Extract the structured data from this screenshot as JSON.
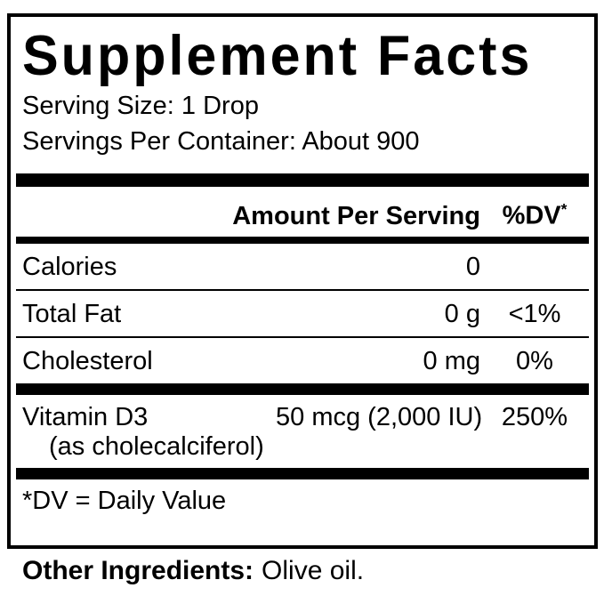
{
  "panel": {
    "title": "Supplement Facts",
    "serving_size": "Serving Size: 1 Drop",
    "servings_per_container": "Servings Per Container: About 900",
    "header": {
      "amount": "Amount Per Serving",
      "dv": "%DV",
      "dv_mark": "*"
    },
    "rows": [
      {
        "name": "Calories",
        "amount": "0",
        "dv": ""
      },
      {
        "name": "Total Fat",
        "amount": "0 g",
        "dv": "<1%"
      },
      {
        "name": "Cholesterol",
        "amount": "0 mg",
        "dv": "0%"
      }
    ],
    "nutrients": [
      {
        "name": "Vitamin D3",
        "detail": "(as cholecalciferol)",
        "amount": "50 mcg (2,000 IU)",
        "dv": "250%"
      }
    ],
    "footnote": "*DV = Daily Value",
    "other_ingredients": {
      "label": "Other Ingredients:",
      "value": "Olive oil."
    }
  },
  "colors": {
    "ink": "#000000",
    "background": "#ffffff"
  }
}
